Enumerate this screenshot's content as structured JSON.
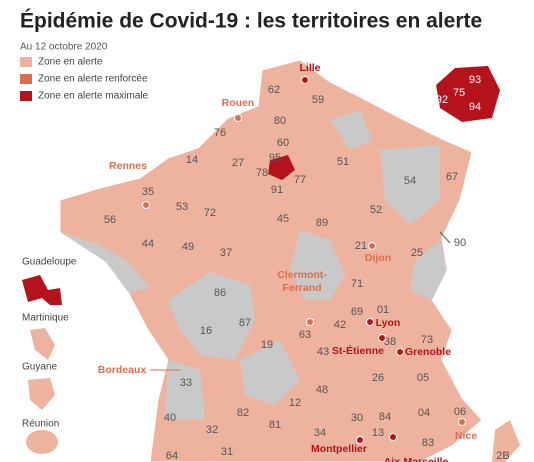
{
  "title": "Épidémie de Covid-19 : les territoires en alerte",
  "subtitle": "Au 12 octobre 2020",
  "legend": [
    "Zone en alerte",
    "Zone en alerte renforcée",
    "Zone en alerte maximale"
  ],
  "departments": [
    "62",
    "59",
    "76",
    "80",
    "60",
    "14",
    "27",
    "95",
    "78",
    "77",
    "91",
    "51",
    "54",
    "67",
    "35",
    "53",
    "72",
    "52",
    "56",
    "45",
    "89",
    "21",
    "25",
    "90",
    "44",
    "49",
    "37",
    "86",
    "71",
    "01",
    "69",
    "42",
    "73",
    "16",
    "87",
    "63",
    "38",
    "19",
    "43",
    "33",
    "26",
    "05",
    "48",
    "12",
    "40",
    "82",
    "32",
    "81",
    "30",
    "84",
    "04",
    "06",
    "34",
    "13",
    "83",
    "31",
    "64",
    "2B"
  ],
  "paris": [
    "93",
    "75",
    "92",
    "94"
  ],
  "cities": [
    "Lille",
    "Rouen",
    "Rennes",
    "Clermont-",
    "Ferrand",
    "Dijon",
    "Lyon",
    "St-Étienne",
    "Grenoble",
    "Bordeaux",
    "Nice",
    "Montpellier",
    "Aix-Marseille"
  ],
  "overseas": [
    "Guadeloupe",
    "Martinique",
    "Guyane",
    "Réunion"
  ]
}
